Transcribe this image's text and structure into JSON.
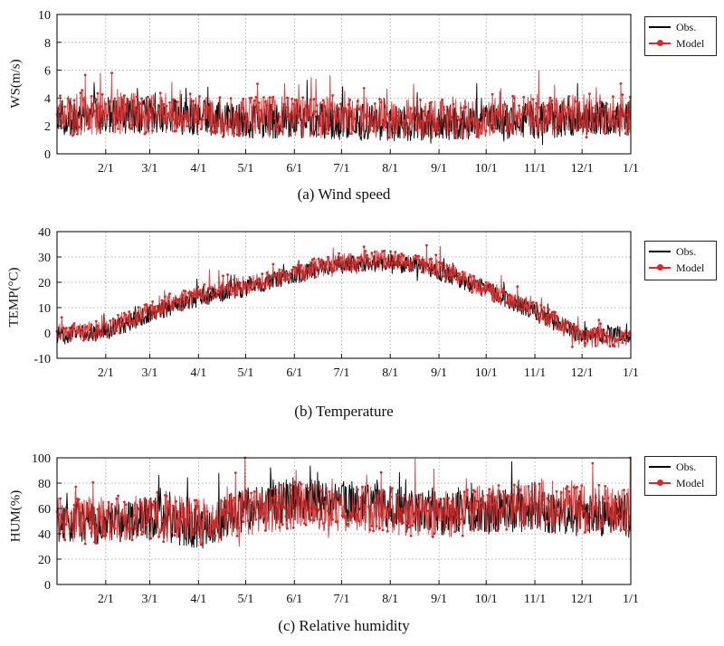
{
  "chart_data": [
    {
      "type": "line",
      "id": "a",
      "caption": "(a) Wind speed",
      "ylabel": "WS(m/s)",
      "ylim": [
        0,
        10
      ],
      "yticks": [
        0,
        2,
        4,
        6,
        8,
        10
      ],
      "x_ticks": [
        "2/1",
        "3/1",
        "4/1",
        "5/1",
        "6/1",
        "7/1",
        "8/1",
        "9/1",
        "10/1",
        "11/1",
        "12/1",
        "1/1"
      ],
      "x_tick_days": [
        31,
        59,
        90,
        120,
        151,
        181,
        212,
        243,
        273,
        304,
        334,
        365
      ],
      "xlim_days": [
        0,
        365
      ],
      "grid": "dotted",
      "legend_position": "outside-right",
      "series": [
        {
          "name": "Obs.",
          "color": "#000000",
          "marker": "triangle",
          "baseline_by_month": [
            2.6,
            2.7,
            2.8,
            2.6,
            2.4,
            2.4,
            2.3,
            2.2,
            2.2,
            2.3,
            2.4,
            2.5
          ],
          "spread": 1.3,
          "clip": [
            0,
            8.3
          ]
        },
        {
          "name": "Model",
          "color": "#d42a2a",
          "marker": "circle",
          "baseline_by_month": [
            2.7,
            2.9,
            2.9,
            2.8,
            2.6,
            2.6,
            2.6,
            2.5,
            2.4,
            2.6,
            2.8,
            2.8
          ],
          "spread": 1.5,
          "clip": [
            0,
            8.4
          ]
        }
      ]
    },
    {
      "type": "line",
      "id": "b",
      "caption": "(b) Temperature",
      "ylabel": "TEMP(°C)",
      "ylim": [
        -10,
        40
      ],
      "ytick_min": -13,
      "yticks": [
        -10,
        0,
        10,
        20,
        30,
        40
      ],
      "x_ticks": [
        "2/1",
        "3/1",
        "4/1",
        "5/1",
        "6/1",
        "7/1",
        "8/1",
        "9/1",
        "10/1",
        "11/1",
        "12/1",
        "1/1"
      ],
      "x_tick_days": [
        31,
        59,
        90,
        120,
        151,
        181,
        212,
        243,
        273,
        304,
        334,
        365
      ],
      "xlim_days": [
        0,
        365
      ],
      "grid": "dotted",
      "legend_position": "outside-right",
      "series": [
        {
          "name": "Obs.",
          "color": "#000000",
          "marker": "triangle",
          "baseline_by_month": [
            -1,
            0,
            8,
            14,
            18,
            23,
            27,
            28,
            24,
            17,
            8,
            -1
          ],
          "spread": 3.5,
          "clip": [
            -12,
            35
          ]
        },
        {
          "name": "Model",
          "color": "#d42a2a",
          "marker": "circle",
          "baseline_by_month": [
            0,
            1,
            9,
            15,
            19,
            24,
            28,
            29,
            25,
            17,
            9,
            -2
          ],
          "spread": 3.8,
          "clip": [
            -12,
            36
          ]
        }
      ]
    },
    {
      "type": "line",
      "id": "c",
      "caption": "(c) Relative humidity",
      "ylabel": "HUM(%)",
      "ylim": [
        0,
        100
      ],
      "yticks": [
        0,
        20,
        40,
        60,
        80,
        100
      ],
      "x_ticks": [
        "2/1",
        "3/1",
        "4/1",
        "5/1",
        "6/1",
        "7/1",
        "8/1",
        "9/1",
        "10/1",
        "11/1",
        "12/1",
        "1/1"
      ],
      "x_tick_days": [
        31,
        59,
        90,
        120,
        151,
        181,
        212,
        243,
        273,
        304,
        334,
        365
      ],
      "xlim_days": [
        0,
        365
      ],
      "grid": "dotted",
      "legend_position": "outside-right",
      "series": [
        {
          "name": "Obs.",
          "color": "#000000",
          "marker": "triangle",
          "baseline_by_month": [
            50,
            48,
            52,
            45,
            60,
            68,
            66,
            62,
            56,
            58,
            58,
            55
          ],
          "spread": 17,
          "clip": [
            0,
            100
          ]
        },
        {
          "name": "Model",
          "color": "#d42a2a",
          "marker": "circle",
          "baseline_by_month": [
            52,
            50,
            55,
            48,
            58,
            62,
            60,
            58,
            55,
            60,
            62,
            60
          ],
          "spread": 19,
          "clip": [
            0,
            100
          ]
        }
      ]
    }
  ]
}
